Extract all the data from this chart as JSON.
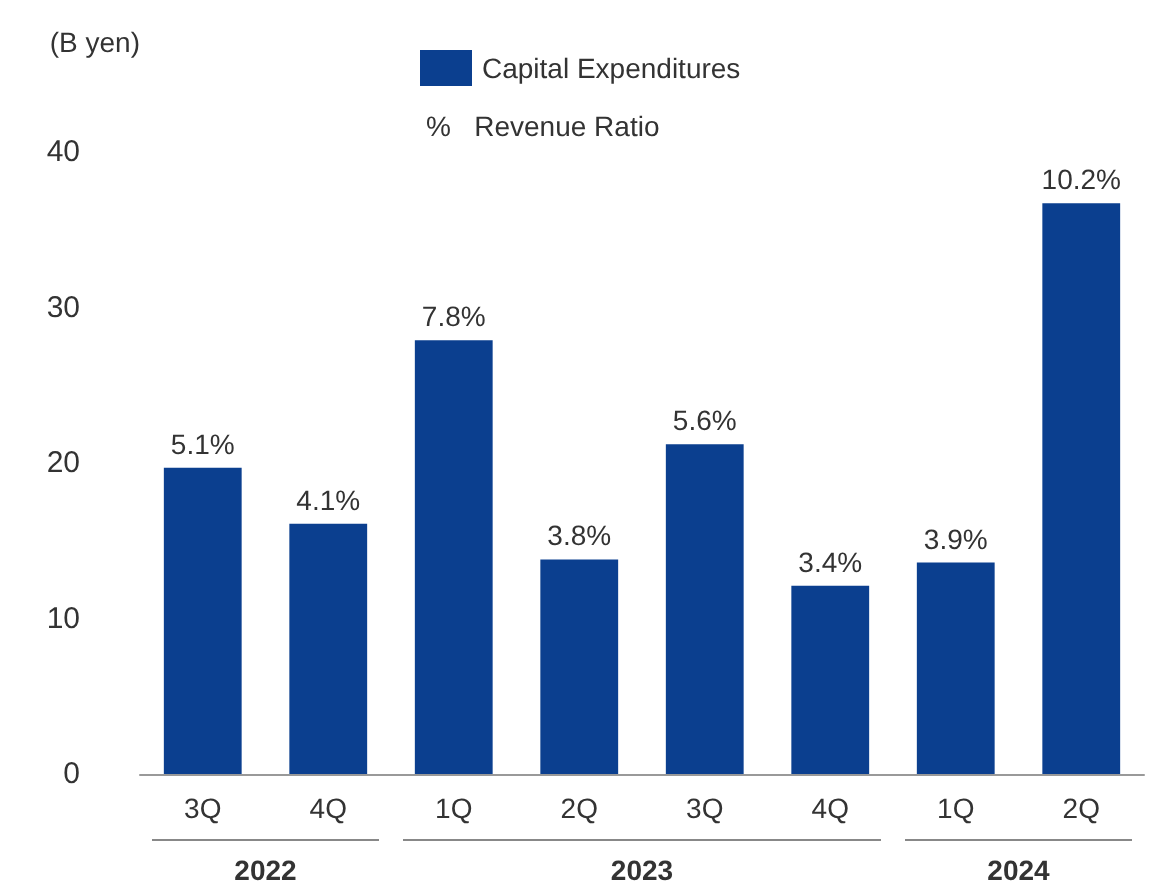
{
  "chart_data": {
    "type": "bar",
    "ylabel": "(B yen)",
    "categories": [
      "3Q",
      "4Q",
      "1Q",
      "2Q",
      "3Q",
      "4Q",
      "1Q",
      "2Q"
    ],
    "series": [
      {
        "name": "Capital Expenditures",
        "color": "#0b3f8f",
        "values": [
          19.7,
          16.1,
          27.9,
          13.8,
          21.2,
          12.1,
          13.6,
          36.7
        ]
      }
    ],
    "ylim": [
      0,
      40
    ],
    "yticks": [
      0,
      10,
      20,
      30,
      40
    ],
    "grid": false,
    "legend": "top",
    "annotations": [
      "%   Revenue Ratio",
      "2022",
      "2023",
      "2024",
      "5.1%",
      "4.1%",
      "7.8%",
      "3.8%",
      "5.6%",
      "3.4%",
      "3.9%",
      "10.2%"
    ]
  }
}
